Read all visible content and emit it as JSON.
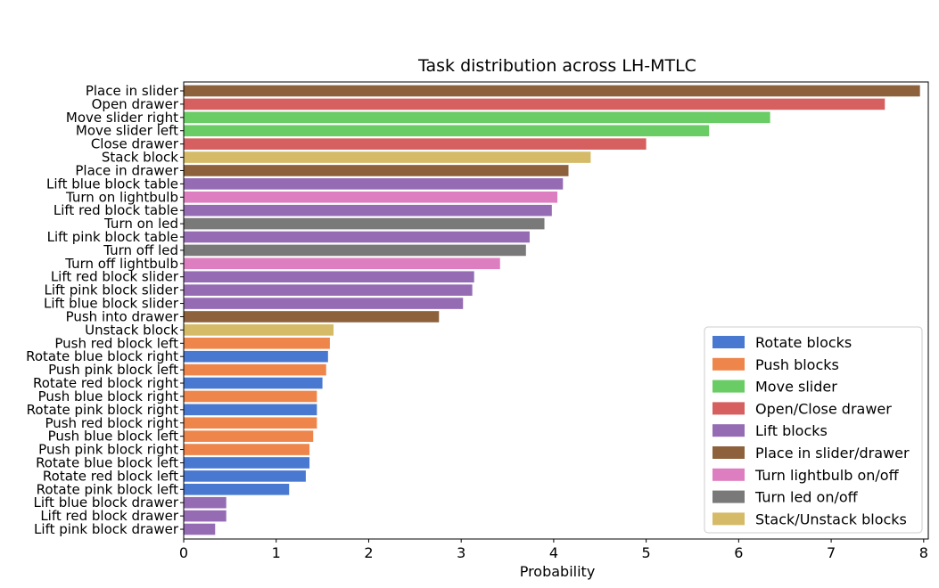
{
  "chart_data": {
    "type": "bar",
    "orientation": "horizontal",
    "title": "Task distribution across LH-MTLC",
    "xlabel": "Probability",
    "ylabel": "",
    "xlim": [
      0,
      8.05
    ],
    "xticks": [
      0,
      1,
      2,
      3,
      4,
      5,
      6,
      7,
      8
    ],
    "grid": false,
    "legend_position": "bottom-right",
    "groups": [
      {
        "name": "Rotate blocks",
        "color": "#4878d0"
      },
      {
        "name": "Push blocks",
        "color": "#ee854a"
      },
      {
        "name": "Move slider",
        "color": "#6acc64"
      },
      {
        "name": "Open/Close drawer",
        "color": "#d65f5f"
      },
      {
        "name": "Lift blocks",
        "color": "#956cb4"
      },
      {
        "name": "Place in slider/drawer",
        "color": "#8c613c"
      },
      {
        "name": "Turn lightbulb on/off",
        "color": "#dc7ec0"
      },
      {
        "name": "Turn led on/off",
        "color": "#797979"
      },
      {
        "name": "Stack/Unstack blocks",
        "color": "#d5bb67"
      }
    ],
    "bars": [
      {
        "label": "Place in slider",
        "value": 7.96,
        "group": 5
      },
      {
        "label": "Open drawer",
        "value": 7.58,
        "group": 3
      },
      {
        "label": "Move slider right",
        "value": 6.34,
        "group": 2
      },
      {
        "label": "Move slider left",
        "value": 5.68,
        "group": 2
      },
      {
        "label": "Close drawer",
        "value": 5.0,
        "group": 3
      },
      {
        "label": "Stack block",
        "value": 4.4,
        "group": 8
      },
      {
        "label": "Place in drawer",
        "value": 4.16,
        "group": 5
      },
      {
        "label": "Lift blue block table",
        "value": 4.1,
        "group": 4
      },
      {
        "label": "Turn on lightbulb",
        "value": 4.04,
        "group": 6
      },
      {
        "label": "Lift red block table",
        "value": 3.98,
        "group": 4
      },
      {
        "label": "Turn on led",
        "value": 3.9,
        "group": 7
      },
      {
        "label": "Lift pink block table",
        "value": 3.74,
        "group": 4
      },
      {
        "label": "Turn off led",
        "value": 3.7,
        "group": 7
      },
      {
        "label": "Turn off lightbulb",
        "value": 3.42,
        "group": 6
      },
      {
        "label": "Lift red block slider",
        "value": 3.14,
        "group": 4
      },
      {
        "label": "Lift pink block slider",
        "value": 3.12,
        "group": 4
      },
      {
        "label": "Lift blue block slider",
        "value": 3.02,
        "group": 4
      },
      {
        "label": "Push into drawer",
        "value": 2.76,
        "group": 5
      },
      {
        "label": "Unstack block",
        "value": 1.62,
        "group": 8
      },
      {
        "label": "Push red block left",
        "value": 1.58,
        "group": 1
      },
      {
        "label": "Rotate blue block right",
        "value": 1.56,
        "group": 0
      },
      {
        "label": "Push pink block left",
        "value": 1.54,
        "group": 1
      },
      {
        "label": "Rotate red block right",
        "value": 1.5,
        "group": 0
      },
      {
        "label": "Push blue block right",
        "value": 1.44,
        "group": 1
      },
      {
        "label": "Rotate pink block right",
        "value": 1.44,
        "group": 0
      },
      {
        "label": "Push red block right",
        "value": 1.44,
        "group": 1
      },
      {
        "label": "Push blue block left",
        "value": 1.4,
        "group": 1
      },
      {
        "label": "Push pink block right",
        "value": 1.36,
        "group": 1
      },
      {
        "label": "Rotate blue block left",
        "value": 1.36,
        "group": 0
      },
      {
        "label": "Rotate red block left",
        "value": 1.32,
        "group": 0
      },
      {
        "label": "Rotate pink block left",
        "value": 1.14,
        "group": 0
      },
      {
        "label": "Lift blue block drawer",
        "value": 0.46,
        "group": 4
      },
      {
        "label": "Lift red block drawer",
        "value": 0.46,
        "group": 4
      },
      {
        "label": "Lift pink block drawer",
        "value": 0.34,
        "group": 4
      }
    ]
  }
}
